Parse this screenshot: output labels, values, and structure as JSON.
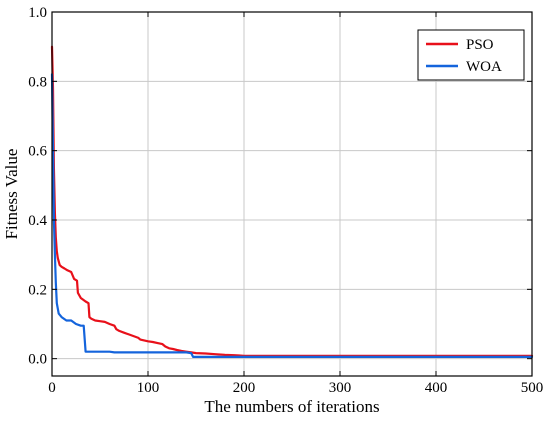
{
  "chart_data": {
    "type": "line",
    "title": "",
    "xlabel": "The numbers of iterations",
    "ylabel": "Fitness Value",
    "xlim": [
      0,
      500
    ],
    "ylim": [
      -0.05,
      1.0
    ],
    "xticks": [
      0,
      100,
      200,
      300,
      400,
      500
    ],
    "yticks": [
      0.0,
      0.2,
      0.4,
      0.6,
      0.8,
      1.0
    ],
    "xtick_labels": [
      "0",
      "100",
      "200",
      "300",
      "400",
      "500"
    ],
    "ytick_labels": [
      "0.0",
      "0.2",
      "0.4",
      "0.6",
      "0.8",
      "1.0"
    ],
    "grid": true,
    "legend_position": "top-right",
    "series": [
      {
        "name": "PSO",
        "color": "#e8101a",
        "x": [
          0,
          1,
          2,
          3,
          4,
          5,
          6,
          8,
          10,
          13,
          16,
          20,
          23,
          26,
          27,
          30,
          35,
          38,
          39,
          41,
          45,
          50,
          55,
          60,
          65,
          67,
          70,
          75,
          80,
          85,
          90,
          92,
          100,
          105,
          110,
          115,
          118,
          122,
          126,
          130,
          135,
          140,
          145,
          150,
          160,
          170,
          180,
          190,
          195,
          200,
          220,
          250,
          300,
          400,
          500
        ],
        "y": [
          0.9,
          0.78,
          0.55,
          0.42,
          0.35,
          0.31,
          0.29,
          0.27,
          0.265,
          0.26,
          0.255,
          0.25,
          0.23,
          0.225,
          0.19,
          0.175,
          0.165,
          0.16,
          0.12,
          0.115,
          0.11,
          0.108,
          0.106,
          0.1,
          0.095,
          0.085,
          0.08,
          0.075,
          0.07,
          0.065,
          0.06,
          0.055,
          0.05,
          0.048,
          0.045,
          0.042,
          0.035,
          0.03,
          0.028,
          0.025,
          0.022,
          0.02,
          0.018,
          0.016,
          0.015,
          0.013,
          0.011,
          0.01,
          0.009,
          0.008,
          0.008,
          0.008,
          0.008,
          0.008,
          0.008
        ]
      },
      {
        "name": "WOA",
        "color": "#1464dc",
        "x": [
          0,
          1,
          2,
          3,
          4,
          5,
          7,
          10,
          15,
          20,
          25,
          30,
          33,
          35,
          40,
          50,
          60,
          65,
          70,
          80,
          100,
          120,
          140,
          145,
          147,
          150,
          200,
          300,
          400,
          500
        ],
        "y": [
          0.82,
          0.6,
          0.4,
          0.3,
          0.22,
          0.16,
          0.13,
          0.12,
          0.11,
          0.11,
          0.1,
          0.095,
          0.095,
          0.02,
          0.02,
          0.02,
          0.02,
          0.018,
          0.018,
          0.018,
          0.018,
          0.018,
          0.018,
          0.016,
          0.005,
          0.005,
          0.005,
          0.005,
          0.005,
          0.005
        ]
      }
    ]
  }
}
